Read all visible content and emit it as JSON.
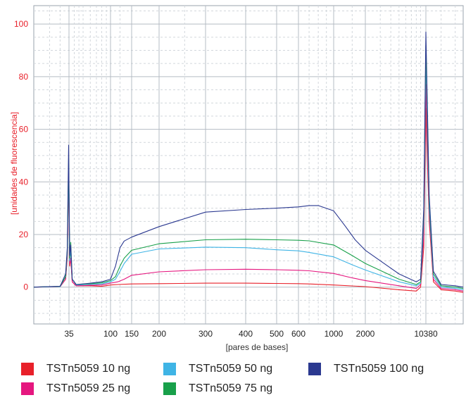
{
  "chart_data": {
    "type": "line",
    "title": "",
    "xlabel": "[pares de bases]",
    "ylabel": "[unidades de fluorescencia]",
    "x_scale": "log",
    "x_ticks": [
      "35",
      "100",
      "150",
      "200",
      "300",
      "400",
      "500",
      "600",
      "1000",
      "2000",
      "10380"
    ],
    "y_ticks": [
      0,
      20,
      40,
      60,
      80,
      100
    ],
    "ylim": [
      -14,
      107
    ],
    "grid": true,
    "legend_position": "bottom",
    "series": [
      {
        "name": "TSTn5059 10 ng",
        "color": "#e8202a",
        "points": [
          [
            19,
            0
          ],
          [
            30,
            0.2
          ],
          [
            33,
            3
          ],
          [
            34,
            11
          ],
          [
            34.8,
            42
          ],
          [
            35.6,
            8
          ],
          [
            36.6,
            11
          ],
          [
            38,
            2
          ],
          [
            42,
            0.5
          ],
          [
            60,
            0.5
          ],
          [
            80,
            0.3
          ],
          [
            100,
            0.8
          ],
          [
            115,
            1
          ],
          [
            150,
            1.2
          ],
          [
            200,
            1.3
          ],
          [
            300,
            1.5
          ],
          [
            400,
            1.5
          ],
          [
            500,
            1.4
          ],
          [
            600,
            1.3
          ],
          [
            700,
            1.2
          ],
          [
            1000,
            0.8
          ],
          [
            2000,
            0.2
          ],
          [
            5000,
            -1
          ],
          [
            8000,
            -1.5
          ],
          [
            9000,
            0
          ],
          [
            9800,
            15
          ],
          [
            10380,
            68
          ],
          [
            10900,
            25
          ],
          [
            11600,
            2
          ],
          [
            13000,
            -1
          ],
          [
            16000,
            -1.5
          ],
          [
            18000,
            -2
          ]
        ]
      },
      {
        "name": "TSTn5059 25 ng",
        "color": "#e5177f",
        "points": [
          [
            19,
            0
          ],
          [
            30,
            0.2
          ],
          [
            33,
            3
          ],
          [
            34,
            12
          ],
          [
            34.8,
            44
          ],
          [
            35.6,
            9
          ],
          [
            36.6,
            11
          ],
          [
            38,
            2
          ],
          [
            42,
            0.5
          ],
          [
            60,
            0.7
          ],
          [
            80,
            0.8
          ],
          [
            100,
            1.5
          ],
          [
            115,
            2
          ],
          [
            130,
            3
          ],
          [
            150,
            4.5
          ],
          [
            200,
            5.8
          ],
          [
            300,
            6.6
          ],
          [
            400,
            6.8
          ],
          [
            500,
            6.6
          ],
          [
            600,
            6.4
          ],
          [
            700,
            6.2
          ],
          [
            1000,
            5.2
          ],
          [
            1500,
            3.5
          ],
          [
            2000,
            2.5
          ],
          [
            5000,
            0.5
          ],
          [
            8000,
            -0.5
          ],
          [
            9000,
            1
          ],
          [
            9800,
            20
          ],
          [
            10380,
            77
          ],
          [
            10900,
            28
          ],
          [
            11600,
            3
          ],
          [
            13000,
            -0.5
          ],
          [
            16000,
            -1
          ],
          [
            18000,
            -1.5
          ]
        ]
      },
      {
        "name": "TSTn5059 50 ng",
        "color": "#3fb4e5",
        "points": [
          [
            19,
            0
          ],
          [
            30,
            0.2
          ],
          [
            33,
            4
          ],
          [
            34,
            13
          ],
          [
            34.8,
            47
          ],
          [
            35.6,
            10
          ],
          [
            36.6,
            14
          ],
          [
            38,
            3
          ],
          [
            42,
            0.8
          ],
          [
            60,
            1
          ],
          [
            80,
            1.2
          ],
          [
            100,
            2
          ],
          [
            110,
            3
          ],
          [
            120,
            6
          ],
          [
            130,
            9
          ],
          [
            150,
            12.5
          ],
          [
            200,
            14.5
          ],
          [
            300,
            15.2
          ],
          [
            400,
            15
          ],
          [
            500,
            14.2
          ],
          [
            600,
            13.8
          ],
          [
            700,
            13.2
          ],
          [
            1000,
            11.5
          ],
          [
            1500,
            8.5
          ],
          [
            2000,
            6.5
          ],
          [
            5000,
            2
          ],
          [
            8000,
            0.5
          ],
          [
            9000,
            1.5
          ],
          [
            9800,
            25
          ],
          [
            10380,
            88
          ],
          [
            10900,
            30
          ],
          [
            11600,
            4
          ],
          [
            13000,
            0
          ],
          [
            16000,
            -0.5
          ],
          [
            18000,
            -1
          ]
        ]
      },
      {
        "name": "TSTn5059 75 ng",
        "color": "#18a04a",
        "points": [
          [
            19,
            0
          ],
          [
            30,
            0.3
          ],
          [
            33,
            4
          ],
          [
            34,
            14
          ],
          [
            34.8,
            49
          ],
          [
            35.6,
            11
          ],
          [
            36.6,
            17
          ],
          [
            38,
            3
          ],
          [
            42,
            1
          ],
          [
            60,
            1.3
          ],
          [
            80,
            1.6
          ],
          [
            100,
            2.5
          ],
          [
            110,
            4
          ],
          [
            120,
            8
          ],
          [
            130,
            11
          ],
          [
            150,
            14
          ],
          [
            200,
            16.5
          ],
          [
            300,
            18
          ],
          [
            400,
            18.2
          ],
          [
            500,
            18
          ],
          [
            600,
            17.8
          ],
          [
            700,
            17.6
          ],
          [
            1000,
            16
          ],
          [
            1500,
            12
          ],
          [
            2000,
            9
          ],
          [
            5000,
            3
          ],
          [
            8000,
            1
          ],
          [
            9000,
            2
          ],
          [
            9800,
            28
          ],
          [
            10380,
            92
          ],
          [
            10900,
            33
          ],
          [
            11600,
            5
          ],
          [
            13000,
            0.5
          ],
          [
            16000,
            0
          ],
          [
            18000,
            -0.5
          ]
        ]
      },
      {
        "name": "TSTn5059 100 ng",
        "color": "#2b3990",
        "points": [
          [
            19,
            0
          ],
          [
            30,
            0.3
          ],
          [
            33,
            5
          ],
          [
            34,
            15
          ],
          [
            34.8,
            54
          ],
          [
            35.6,
            12
          ],
          [
            36.6,
            16
          ],
          [
            38,
            3
          ],
          [
            42,
            1
          ],
          [
            60,
            1.5
          ],
          [
            80,
            2
          ],
          [
            100,
            3
          ],
          [
            110,
            8
          ],
          [
            120,
            15
          ],
          [
            130,
            17.5
          ],
          [
            150,
            19
          ],
          [
            200,
            23
          ],
          [
            300,
            28.5
          ],
          [
            400,
            29.5
          ],
          [
            500,
            30
          ],
          [
            600,
            30.5
          ],
          [
            700,
            31
          ],
          [
            800,
            31
          ],
          [
            1000,
            29
          ],
          [
            1300,
            23
          ],
          [
            1600,
            18
          ],
          [
            2000,
            14
          ],
          [
            3000,
            10
          ],
          [
            5000,
            5
          ],
          [
            8000,
            2
          ],
          [
            9000,
            3
          ],
          [
            9800,
            30
          ],
          [
            10380,
            97
          ],
          [
            10900,
            35
          ],
          [
            11600,
            6
          ],
          [
            13000,
            1
          ],
          [
            16000,
            0.5
          ],
          [
            18000,
            0
          ]
        ]
      }
    ]
  }
}
